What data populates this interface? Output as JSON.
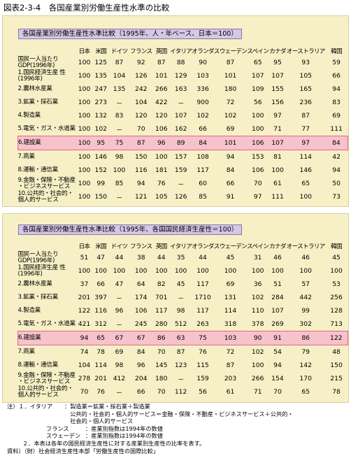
{
  "page_title": "図表2-3-4　各国産業別労働生産性水準の比較",
  "columns": [
    "日本",
    "米国",
    "ドイツ",
    "フランス",
    "英国",
    "イタリア",
    "オランダ",
    "スウェーデン",
    "スペイン",
    "カナダ",
    "オーストラリア",
    "韓国"
  ],
  "table1": {
    "header": "各国産業別労働生産性水準比較（1995年、人・年ベース、日本＝100）",
    "rows": [
      {
        "label": "国民一人当たり GDP(1996年)",
        "values": [
          "100",
          "125",
          "87",
          "92",
          "87",
          "88",
          "90",
          "87",
          "65",
          "95",
          "93",
          "59"
        ]
      },
      {
        "label": "1.国民経済生産 性(1996年)",
        "values": [
          "100",
          "135",
          "104",
          "126",
          "101",
          "129",
          "103",
          "101",
          "107",
          "107",
          "105",
          "66"
        ]
      },
      {
        "label": "2.農林水産業",
        "values": [
          "100",
          "247",
          "135",
          "242",
          "266",
          "163",
          "336",
          "180",
          "109",
          "155",
          "165",
          "94"
        ]
      },
      {
        "label": "3.鉱業・採石業",
        "values": [
          "100",
          "273",
          "－",
          "104",
          "422",
          "－",
          "900",
          "72",
          "56",
          "156",
          "236",
          "83"
        ]
      },
      {
        "label": "4.製造業",
        "values": [
          "100",
          "132",
          "83",
          "120",
          "120",
          "107",
          "102",
          "102",
          "100",
          "97",
          "87",
          "69"
        ]
      },
      {
        "label": "5.電気・ガス・水道業",
        "values": [
          "100",
          "102",
          "－",
          "70",
          "106",
          "162",
          "66",
          "69",
          "100",
          "71",
          "77",
          "111"
        ]
      },
      {
        "label": "6.建設業",
        "values": [
          "100",
          "95",
          "75",
          "87",
          "96",
          "89",
          "84",
          "101",
          "106",
          "107",
          "97",
          "84"
        ],
        "highlight": true
      },
      {
        "label": "7.商業",
        "values": [
          "100",
          "146",
          "98",
          "150",
          "100",
          "157",
          "108",
          "94",
          "153",
          "81",
          "114",
          "42"
        ]
      },
      {
        "label": "8.運輸・通信業",
        "values": [
          "100",
          "152",
          "100",
          "116",
          "181",
          "159",
          "117",
          "84",
          "106",
          "100",
          "146",
          "94"
        ]
      },
      {
        "label": "9.金融・保険・不動産 ・ビジネスサービス",
        "values": [
          "100",
          "99",
          "85",
          "94",
          "76",
          "－",
          "60",
          "66",
          "70",
          "61",
          "65",
          "50"
        ]
      },
      {
        "label": "10.公共的・社会的・ 個人的サービス",
        "values": [
          "100",
          "150",
          "－",
          "121",
          "105",
          "126",
          "85",
          "91",
          "97",
          "111",
          "100",
          "73"
        ]
      }
    ]
  },
  "table2": {
    "header": "各国産業別労働生産性水準比較（1995年、各国国民経済生産性＝100）",
    "rows": [
      {
        "label": "国民一人当たり GDP(1996年)",
        "values": [
          "51",
          "47",
          "44",
          "38",
          "44",
          "35",
          "44",
          "45",
          "31",
          "46",
          "46",
          "45"
        ]
      },
      {
        "label": "1.国民経済生産 性(1996年)",
        "values": [
          "100",
          "100",
          "100",
          "100",
          "100",
          "100",
          "100",
          "100",
          "100",
          "100",
          "100",
          "100"
        ]
      },
      {
        "label": "2.農林水産業",
        "values": [
          "37",
          "66",
          "47",
          "64",
          "82",
          "45",
          "117",
          "69",
          "36",
          "51",
          "57",
          "53"
        ]
      },
      {
        "label": "3.鉱業・採石業",
        "values": [
          "201",
          "397",
          "－",
          "174",
          "701",
          "－",
          "1710",
          "131",
          "102",
          "284",
          "442",
          "256"
        ]
      },
      {
        "label": "4.製造業",
        "values": [
          "122",
          "116",
          "96",
          "106",
          "117",
          "98",
          "117",
          "114",
          "110",
          "107",
          "99",
          "128"
        ]
      },
      {
        "label": "5.電気・ガス・水道業",
        "values": [
          "421",
          "312",
          "－",
          "245",
          "280",
          "512",
          "263",
          "318",
          "378",
          "269",
          "302",
          "713"
        ]
      },
      {
        "label": "6.建設業",
        "values": [
          "94",
          "65",
          "67",
          "67",
          "86",
          "63",
          "75",
          "103",
          "90",
          "91",
          "86",
          "122"
        ],
        "highlight": true
      },
      {
        "label": "7.商業",
        "values": [
          "74",
          "78",
          "69",
          "84",
          "70",
          "87",
          "76",
          "72",
          "102",
          "54",
          "79",
          "48"
        ]
      },
      {
        "label": "8.運輸・通信業",
        "values": [
          "104",
          "114",
          "98",
          "96",
          "145",
          "123",
          "115",
          "87",
          "100",
          "94",
          "142",
          "150"
        ]
      },
      {
        "label": "9.金融・保険・不動産 ・ビジネスサービス",
        "values": [
          "278",
          "201",
          "412",
          "204",
          "180",
          "－",
          "159",
          "203",
          "266",
          "154",
          "170",
          "215"
        ]
      },
      {
        "label": "10.公共的・社会的・ 個人的サービス",
        "values": [
          "70",
          "76",
          "－",
          "66",
          "70",
          "112",
          "56",
          "61",
          "71",
          "70",
          "65",
          "78"
        ]
      }
    ]
  },
  "notes": {
    "n1_key": "注）１．イタリア",
    "n1_line1": "：製造業＝鉱業・採石業＋製造業",
    "n1_line2": "　公共的・社会的・個人的サービス＝金融・保険・不動産・ビジネスサービス＋公共的・",
    "n1_line3": "　社会的・個人的サービス",
    "n_fr_key": "フランス",
    "n_fr_val": "：産業別指数は1994年の数値",
    "n_se_key": "スウェーデン",
    "n_se_val": "：産業別指数は1994年の数値",
    "n2": "２．本表は各年の国民経済生産性に対する産業別生産性の比率を表す。",
    "source": "資料）（財）社会経済生産性本部「労働生産性の国際比較」"
  }
}
